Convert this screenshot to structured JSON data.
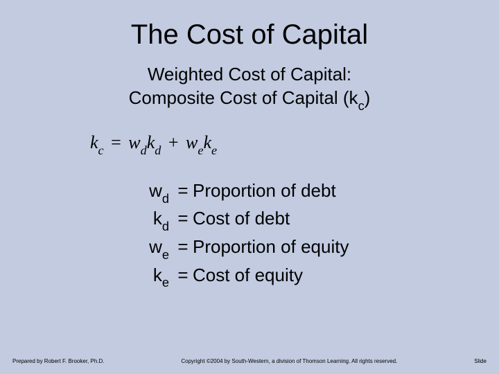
{
  "background_color": "#c2cbe0",
  "text_color": "#000000",
  "title": {
    "text": "The Cost of Capital",
    "font_size_pt": 40,
    "font_family": "Arial"
  },
  "subtitle": {
    "line1": "Weighted Cost of Capital:",
    "line2_pre": "Composite Cost of Capital (k",
    "line2_sub": "c",
    "line2_post": ")",
    "font_size_pt": 26
  },
  "formula": {
    "font_family": "Times New Roman",
    "font_style": "italic",
    "font_size_pt": 26,
    "lhs_base": "k",
    "lhs_sub": "c",
    "t1a_base": "w",
    "t1a_sub": "d",
    "t1b_base": "k",
    "t1b_sub": "d",
    "t2a_base": "w",
    "t2a_sub": "e",
    "t2b_base": "k",
    "t2b_sub": "e",
    "eq": "=",
    "plus": "+"
  },
  "definitions": {
    "font_size_pt": 26,
    "rows": [
      {
        "sym_base": "w",
        "sym_sub": "d",
        "desc": "Proportion of debt"
      },
      {
        "sym_base": "k",
        "sym_sub": "d",
        "desc": "Cost of debt"
      },
      {
        "sym_base": "w",
        "sym_sub": "e",
        "desc": "Proportion of equity"
      },
      {
        "sym_base": "k",
        "sym_sub": "e",
        "desc": "Cost of equity"
      }
    ],
    "eq": "="
  },
  "footer": {
    "left": "Prepared by Robert F. Brooker, Ph.D.",
    "center": "Copyright ©2004 by South-Western, a division of Thomson Learning. All rights reserved.",
    "right": "Slide",
    "font_size_pt": 8
  }
}
